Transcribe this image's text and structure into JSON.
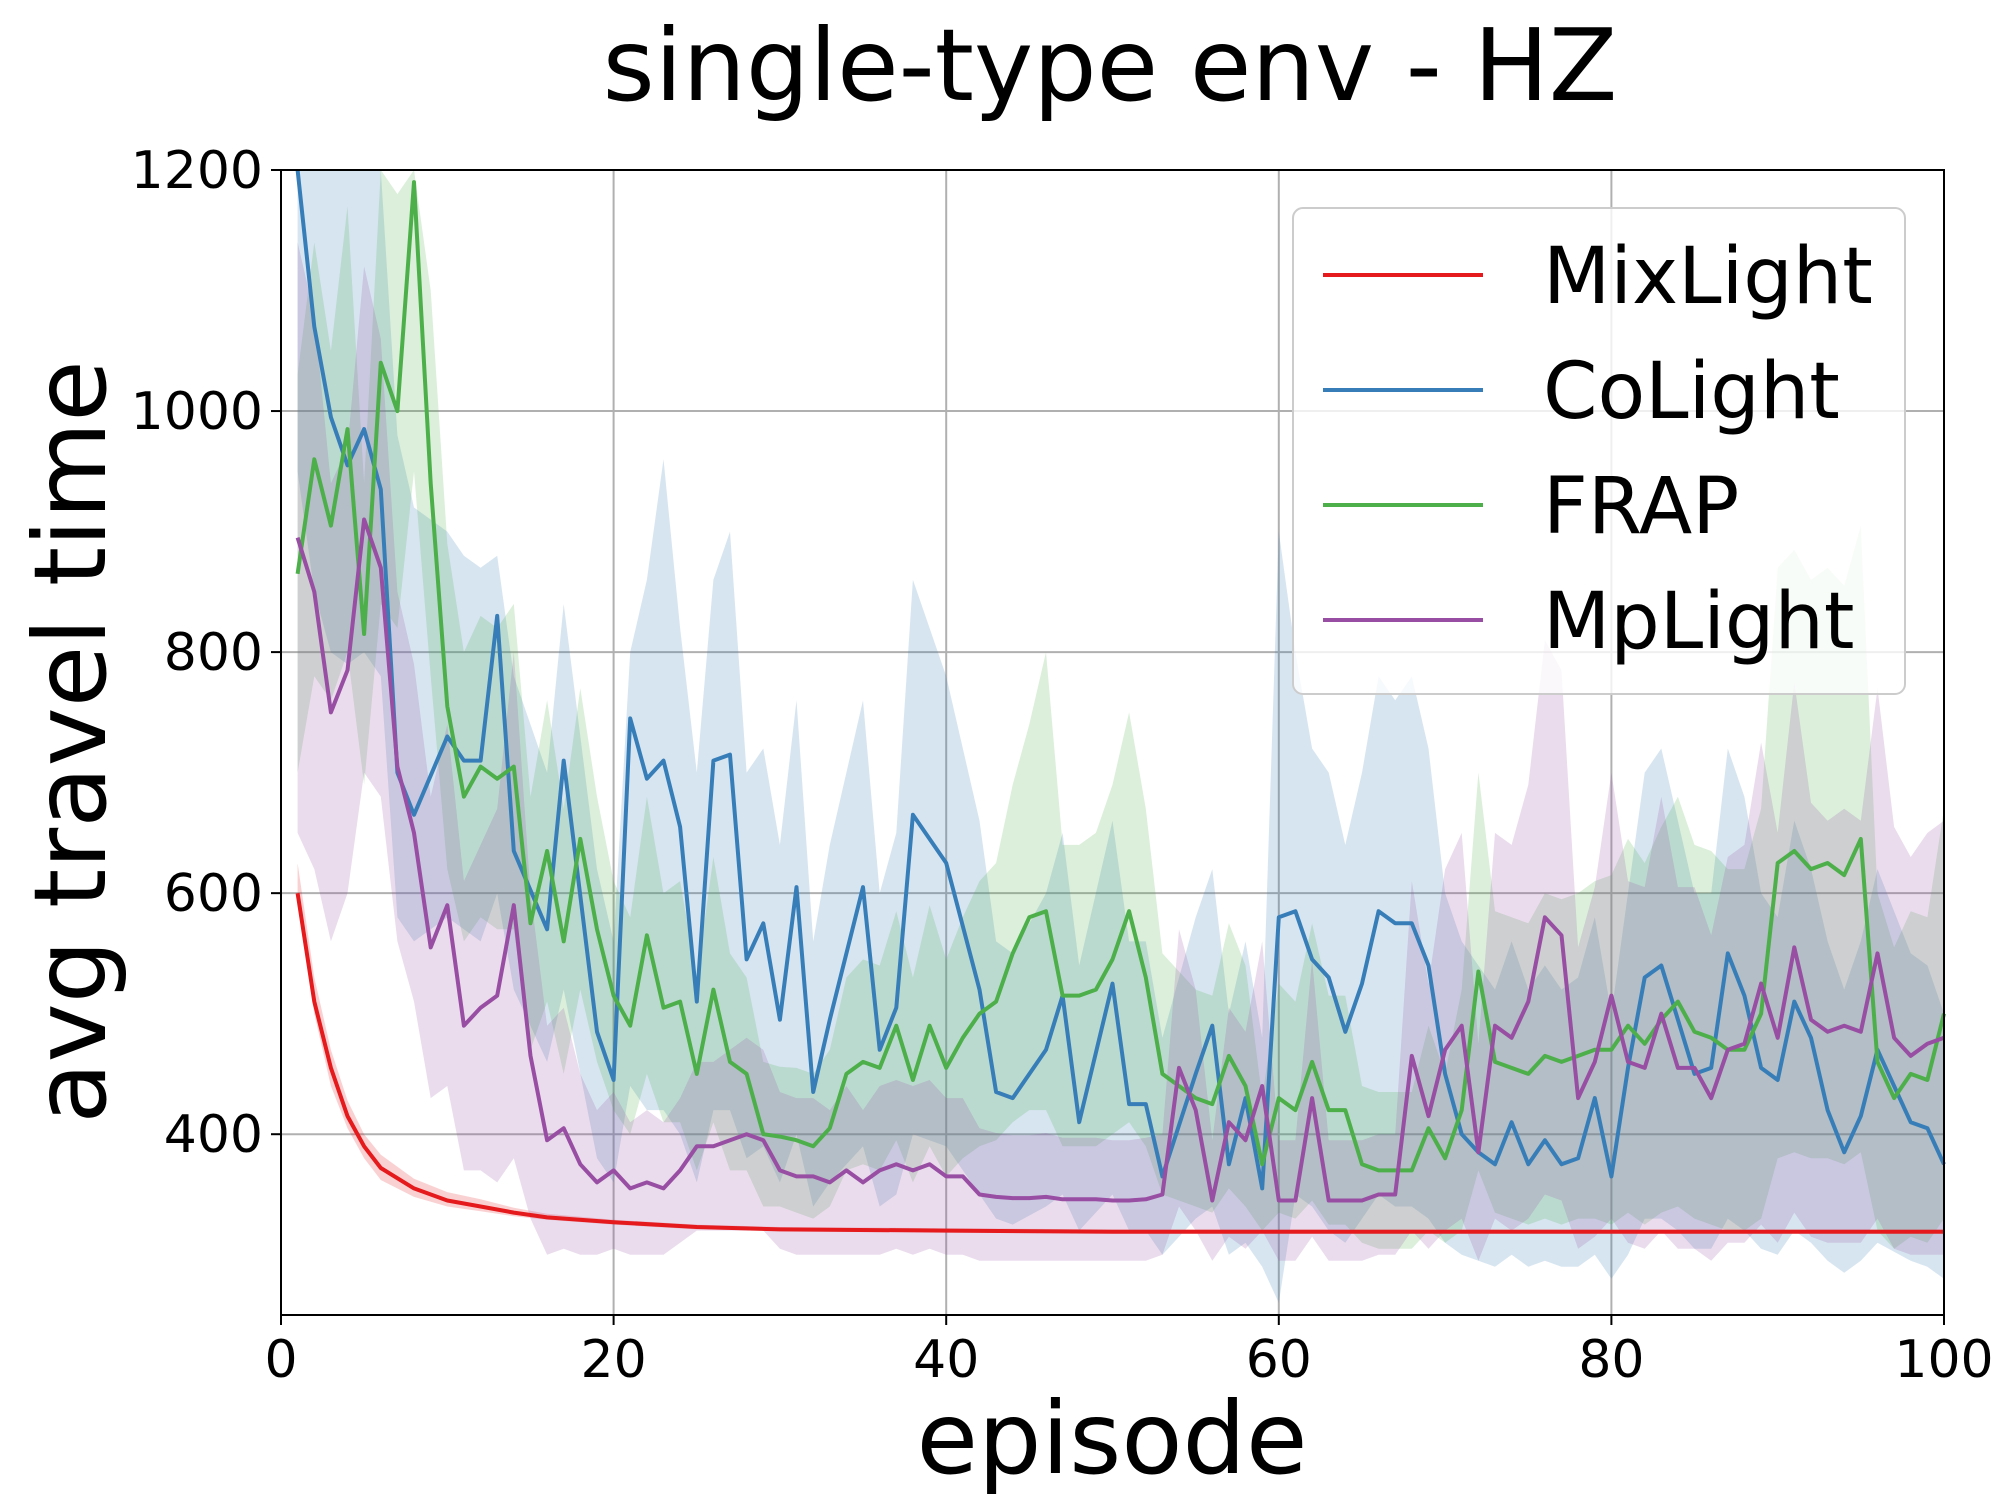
{
  "chart_data": {
    "type": "line",
    "title": "single-type env - HZ",
    "xlabel": "episode",
    "ylabel": "avg travel time",
    "xlim": [
      0,
      100
    ],
    "ylim": [
      250,
      1200
    ],
    "xticks": [
      0,
      20,
      40,
      60,
      80,
      100
    ],
    "yticks": [
      400,
      600,
      800,
      1000,
      1200
    ],
    "grid": true,
    "legend_position": "top-right",
    "series": [
      {
        "name": "MixLight",
        "color": "#e41a1c",
        "x": [
          1,
          2,
          3,
          4,
          5,
          6,
          8,
          10,
          12,
          14,
          16,
          20,
          25,
          30,
          40,
          50,
          60,
          70,
          80,
          90,
          100
        ],
        "y": [
          600,
          510,
          455,
          415,
          390,
          372,
          355,
          345,
          340,
          335,
          331,
          327,
          323,
          321,
          320,
          319,
          319,
          319,
          319,
          319,
          319
        ],
        "lower": [
          590,
          500,
          440,
          405,
          380,
          362,
          348,
          340,
          336,
          332,
          329,
          325,
          321,
          320,
          319,
          318,
          318,
          318,
          318,
          318,
          318
        ],
        "upper": [
          625,
          530,
          470,
          428,
          400,
          383,
          363,
          352,
          346,
          339,
          334,
          329,
          325,
          323,
          322,
          321,
          321,
          321,
          321,
          321,
          321
        ]
      },
      {
        "name": "CoLight",
        "color": "#377eb8",
        "x": [
          1,
          2,
          3,
          4,
          5,
          6,
          7,
          8,
          10,
          11,
          12,
          13,
          14,
          16,
          17,
          19,
          20,
          21,
          22,
          23,
          24,
          25,
          26,
          27,
          28,
          29,
          30,
          31,
          32,
          33,
          35,
          36,
          37,
          38,
          40,
          42,
          43,
          44,
          46,
          47,
          48,
          50,
          51,
          52,
          53,
          55,
          56,
          57,
          58,
          59,
          60,
          61,
          62,
          63,
          64,
          65,
          66,
          67,
          68,
          69,
          70,
          71,
          72,
          73,
          74,
          75,
          76,
          77,
          78,
          79,
          80,
          81,
          82,
          83,
          84,
          85,
          86,
          87,
          88,
          89,
          90,
          91,
          92,
          93,
          94,
          95,
          96,
          98,
          99,
          100
        ],
        "y": [
          1200,
          1070,
          995,
          955,
          985,
          935,
          700,
          665,
          730,
          710,
          710,
          830,
          635,
          570,
          710,
          485,
          445,
          745,
          695,
          710,
          655,
          510,
          710,
          715,
          545,
          575,
          495,
          605,
          435,
          495,
          605,
          470,
          505,
          665,
          625,
          520,
          435,
          430,
          470,
          515,
          410,
          525,
          425,
          425,
          365,
          450,
          490,
          375,
          430,
          355,
          580,
          585,
          545,
          530,
          485,
          525,
          585,
          575,
          575,
          540,
          450,
          400,
          385,
          375,
          410,
          375,
          395,
          375,
          380,
          430,
          365,
          455,
          530,
          540,
          495,
          450,
          455,
          550,
          515,
          455,
          445,
          510,
          480,
          420,
          385,
          415,
          470,
          410,
          405,
          375
        ],
        "lower": [
          950,
          850,
          800,
          790,
          800,
          780,
          580,
          560,
          580,
          570,
          560,
          600,
          520,
          460,
          520,
          380,
          360,
          440,
          420,
          420,
          400,
          360,
          420,
          420,
          380,
          390,
          360,
          400,
          340,
          360,
          390,
          340,
          350,
          400,
          390,
          350,
          330,
          325,
          340,
          350,
          320,
          350,
          320,
          320,
          300,
          330,
          340,
          300,
          310,
          290,
          260,
          350,
          340,
          320,
          310,
          330,
          350,
          340,
          340,
          330,
          310,
          300,
          295,
          290,
          300,
          290,
          295,
          290,
          290,
          300,
          280,
          300,
          330,
          330,
          320,
          305,
          305,
          330,
          320,
          305,
          300,
          320,
          310,
          295,
          285,
          295,
          310,
          295,
          290,
          280
        ],
        "upper": [
          1200,
          1200,
          1200,
          1200,
          1200,
          1200,
          980,
          920,
          900,
          880,
          870,
          880,
          780,
          700,
          840,
          620,
          560,
          800,
          860,
          960,
          820,
          700,
          860,
          900,
          700,
          720,
          640,
          760,
          560,
          640,
          760,
          600,
          650,
          860,
          780,
          660,
          560,
          550,
          600,
          650,
          540,
          660,
          560,
          560,
          480,
          580,
          620,
          500,
          560,
          480,
          900,
          800,
          720,
          700,
          640,
          700,
          780,
          760,
          780,
          720,
          600,
          560,
          540,
          520,
          560,
          520,
          540,
          520,
          530,
          580,
          500,
          600,
          700,
          720,
          660,
          600,
          600,
          720,
          680,
          600,
          580,
          660,
          620,
          560,
          520,
          560,
          620,
          550,
          540,
          500
        ]
      },
      {
        "name": "FRAP",
        "color": "#4daf4a",
        "x": [
          1,
          2,
          3,
          4,
          5,
          6,
          7,
          8,
          9,
          10,
          11,
          12,
          13,
          14,
          15,
          16,
          17,
          18,
          19,
          20,
          21,
          22,
          23,
          24,
          25,
          26,
          27,
          28,
          29,
          30,
          31,
          32,
          33,
          34,
          35,
          36,
          37,
          38,
          39,
          40,
          41,
          42,
          43,
          44,
          45,
          46,
          47,
          48,
          49,
          50,
          51,
          52,
          53,
          54,
          55,
          56,
          57,
          58,
          59,
          60,
          61,
          62,
          63,
          64,
          65,
          66,
          67,
          68,
          69,
          70,
          71,
          72,
          73,
          74,
          75,
          76,
          77,
          78,
          79,
          80,
          81,
          82,
          83,
          84,
          85,
          86,
          87,
          88,
          89,
          90,
          91,
          92,
          93,
          94,
          95,
          96,
          97,
          98,
          99,
          100
        ],
        "y": [
          865,
          960,
          905,
          985,
          815,
          1040,
          1000,
          1190,
          940,
          755,
          680,
          705,
          695,
          705,
          575,
          635,
          560,
          645,
          570,
          515,
          490,
          565,
          505,
          510,
          450,
          520,
          460,
          450,
          400,
          398,
          395,
          390,
          405,
          450,
          460,
          455,
          490,
          445,
          490,
          455,
          480,
          500,
          510,
          550,
          580,
          585,
          515,
          515,
          520,
          545,
          585,
          530,
          450,
          440,
          430,
          425,
          465,
          440,
          375,
          430,
          420,
          460,
          420,
          420,
          375,
          370,
          370,
          370,
          405,
          380,
          420,
          535,
          460,
          455,
          450,
          465,
          460,
          465,
          470,
          470,
          490,
          475,
          495,
          510,
          485,
          480,
          470,
          470,
          500,
          625,
          635,
          620,
          625,
          615,
          645,
          460,
          430,
          450,
          445,
          500
        ],
        "lower": [
          700,
          780,
          760,
          800,
          690,
          840,
          820,
          950,
          780,
          620,
          560,
          580,
          570,
          570,
          470,
          510,
          450,
          520,
          460,
          420,
          400,
          450,
          410,
          410,
          370,
          410,
          370,
          370,
          340,
          340,
          335,
          330,
          340,
          370,
          375,
          370,
          395,
          360,
          390,
          365,
          380,
          390,
          395,
          410,
          420,
          420,
          390,
          390,
          390,
          400,
          410,
          390,
          350,
          345,
          340,
          335,
          355,
          340,
          320,
          335,
          330,
          345,
          325,
          325,
          310,
          305,
          305,
          305,
          320,
          310,
          320,
          370,
          335,
          330,
          325,
          330,
          325,
          330,
          330,
          325,
          335,
          325,
          335,
          340,
          330,
          325,
          320,
          320,
          330,
          380,
          385,
          380,
          380,
          375,
          385,
          320,
          305,
          315,
          310,
          330
        ],
        "upper": [
          1030,
          1140,
          1050,
          1170,
          940,
          1200,
          1180,
          1200,
          1100,
          890,
          800,
          830,
          820,
          840,
          680,
          760,
          670,
          770,
          680,
          610,
          580,
          680,
          600,
          610,
          530,
          630,
          550,
          530,
          460,
          456,
          455,
          450,
          470,
          530,
          545,
          540,
          585,
          530,
          590,
          545,
          580,
          610,
          625,
          690,
          740,
          800,
          640,
          640,
          650,
          690,
          750,
          670,
          550,
          535,
          520,
          515,
          575,
          540,
          430,
          525,
          510,
          575,
          515,
          515,
          440,
          435,
          435,
          435,
          490,
          450,
          520,
          700,
          585,
          580,
          575,
          600,
          595,
          600,
          610,
          615,
          645,
          625,
          655,
          680,
          640,
          635,
          620,
          620,
          670,
          870,
          885,
          860,
          870,
          855,
          905,
          600,
          555,
          585,
          580,
          670
        ]
      },
      {
        "name": "MpLight",
        "color": "#984ea3",
        "x": [
          1,
          2,
          3,
          4,
          5,
          6,
          7,
          8,
          9,
          10,
          11,
          12,
          13,
          14,
          15,
          16,
          17,
          18,
          19,
          20,
          21,
          22,
          23,
          24,
          25,
          26,
          27,
          28,
          29,
          30,
          31,
          32,
          33,
          34,
          35,
          36,
          37,
          38,
          39,
          40,
          41,
          42,
          43,
          44,
          45,
          46,
          47,
          48,
          49,
          50,
          51,
          52,
          53,
          54,
          55,
          56,
          57,
          58,
          59,
          60,
          61,
          62,
          63,
          64,
          65,
          66,
          67,
          68,
          69,
          70,
          71,
          72,
          73,
          74,
          75,
          76,
          77,
          78,
          79,
          80,
          81,
          82,
          83,
          84,
          85,
          86,
          87,
          88,
          89,
          90,
          91,
          92,
          93,
          94,
          95,
          96,
          97,
          98,
          99,
          100
        ],
        "y": [
          895,
          850,
          750,
          785,
          910,
          870,
          705,
          650,
          555,
          590,
          490,
          505,
          515,
          590,
          465,
          395,
          405,
          375,
          360,
          370,
          355,
          360,
          355,
          370,
          390,
          390,
          395,
          400,
          395,
          370,
          365,
          365,
          360,
          370,
          360,
          370,
          375,
          370,
          375,
          365,
          365,
          350,
          348,
          347,
          347,
          348,
          346,
          346,
          346,
          345,
          345,
          346,
          350,
          455,
          420,
          345,
          410,
          395,
          440,
          345,
          345,
          430,
          345,
          345,
          345,
          350,
          350,
          465,
          415,
          470,
          490,
          385,
          490,
          480,
          510,
          580,
          565,
          430,
          460,
          515,
          460,
          455,
          500,
          455,
          455,
          430,
          470,
          475,
          525,
          480,
          555,
          495,
          485,
          490,
          485,
          550,
          480,
          465,
          475,
          480
        ],
        "lower": [
          650,
          620,
          560,
          600,
          700,
          680,
          560,
          510,
          430,
          440,
          370,
          370,
          360,
          380,
          330,
          300,
          305,
          300,
          300,
          305,
          300,
          300,
          300,
          310,
          320,
          320,
          320,
          320,
          320,
          305,
          300,
          300,
          300,
          300,
          300,
          300,
          305,
          300,
          305,
          300,
          300,
          295,
          295,
          295,
          295,
          295,
          295,
          295,
          295,
          295,
          295,
          295,
          300,
          340,
          320,
          295,
          315,
          305,
          320,
          295,
          295,
          315,
          295,
          295,
          295,
          300,
          300,
          320,
          305,
          320,
          330,
          295,
          330,
          320,
          330,
          350,
          345,
          305,
          315,
          330,
          310,
          305,
          320,
          305,
          305,
          295,
          310,
          310,
          325,
          310,
          335,
          315,
          310,
          310,
          310,
          330,
          305,
          300,
          300,
          300
        ],
        "upper": [
          1140,
          1080,
          940,
          970,
          1120,
          1060,
          850,
          790,
          680,
          740,
          610,
          640,
          670,
          800,
          600,
          490,
          505,
          450,
          420,
          435,
          410,
          420,
          410,
          430,
          460,
          460,
          470,
          480,
          470,
          435,
          430,
          430,
          420,
          440,
          420,
          440,
          445,
          440,
          445,
          430,
          430,
          405,
          401,
          399,
          399,
          401,
          397,
          397,
          397,
          395,
          395,
          397,
          400,
          570,
          520,
          395,
          505,
          485,
          560,
          395,
          395,
          545,
          395,
          395,
          395,
          400,
          400,
          610,
          525,
          620,
          650,
          475,
          650,
          640,
          690,
          810,
          785,
          555,
          605,
          700,
          610,
          605,
          680,
          605,
          605,
          565,
          630,
          640,
          725,
          650,
          775,
          675,
          660,
          670,
          660,
          770,
          655,
          630,
          650,
          660
        ]
      }
    ]
  }
}
